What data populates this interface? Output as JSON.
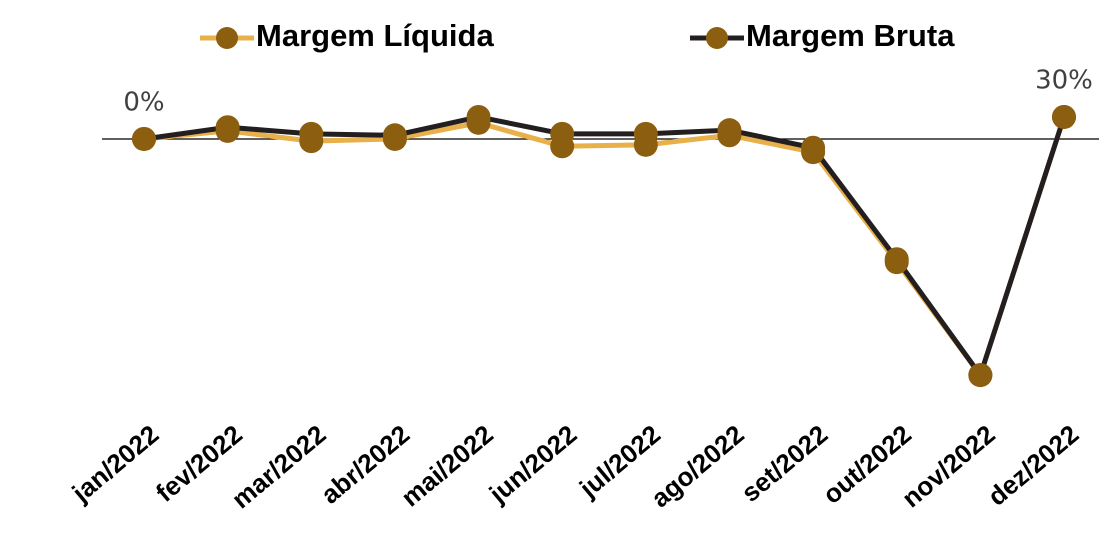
{
  "chart_data": {
    "type": "line",
    "categories": [
      "jan/2022",
      "fev/2022",
      "mar/2022",
      "abr/2022",
      "mai/2022",
      "jun/2022",
      "jul/2022",
      "ago/2022",
      "set/2022",
      "out/2022",
      "nov/2022",
      "dez/2022"
    ],
    "series": [
      {
        "name": "Margem Líquida",
        "color": "#e8b04a",
        "values": [
          0,
          11,
          -3,
          0,
          22,
          -10,
          -8,
          5,
          -18,
          -168,
          -322,
          30
        ]
      },
      {
        "name": "Margem Bruta",
        "color": "#231f20",
        "values": [
          0,
          16,
          7,
          5,
          30,
          7,
          7,
          12,
          -12,
          -164,
          -322,
          30
        ],
        "value_labels": [
          "0%",
          null,
          null,
          null,
          null,
          null,
          null,
          null,
          null,
          null,
          null,
          "30%"
        ]
      }
    ],
    "marker_color": "#8b5e10",
    "ylim": [
      -340,
      80
    ],
    "legend": "top"
  }
}
